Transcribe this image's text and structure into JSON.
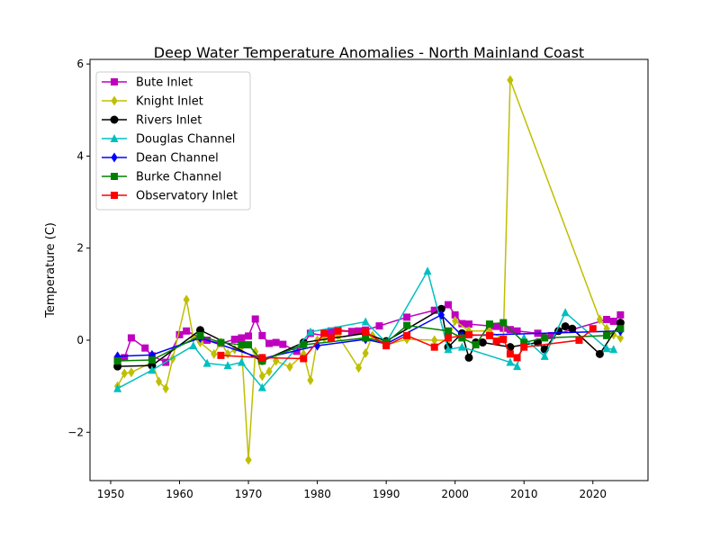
{
  "chart_data": {
    "type": "line",
    "title": "Deep Water Temperature Anomalies - North Mainland Coast",
    "xlabel": "",
    "ylabel": "Temperature (C)",
    "xlim": [
      1947,
      2028
    ],
    "ylim": [
      -3.05,
      6.1
    ],
    "xticks": [
      1950,
      1960,
      1970,
      1980,
      1990,
      2000,
      2010,
      2020
    ],
    "yticks": [
      -2,
      0,
      2,
      4,
      6
    ],
    "yticklabels": [
      "−2",
      "0",
      "2",
      "4",
      "6"
    ],
    "grid": false,
    "legend_position": "top-left",
    "series": [
      {
        "name": "Bute Inlet",
        "color": "#bf00bf",
        "marker": "square",
        "x": [
          1951,
          1952,
          1953,
          1955,
          1956,
          1958,
          1960,
          1961,
          1963,
          1964,
          1966,
          1968,
          1969,
          1970,
          1971,
          1972,
          1973,
          1974,
          1975,
          1977,
          1978,
          1979,
          1981,
          1982,
          1983,
          1985,
          1986,
          1987,
          1989,
          1993,
          1997,
          1999,
          2000,
          2001,
          2002,
          2005,
          2006,
          2007,
          2008,
          2009,
          2012,
          2014,
          2022,
          2023,
          2024
        ],
        "y": [
          -0.42,
          -0.38,
          0.05,
          -0.17,
          -0.34,
          -0.48,
          0.12,
          0.2,
          0.05,
          0.0,
          -0.07,
          0.02,
          0.05,
          0.09,
          0.46,
          0.1,
          -0.07,
          -0.05,
          -0.09,
          -0.24,
          -0.09,
          0.15,
          0.1,
          0.2,
          0.22,
          0.19,
          0.2,
          0.22,
          0.31,
          0.5,
          0.65,
          0.77,
          0.55,
          0.36,
          0.35,
          0.31,
          0.3,
          0.26,
          0.23,
          0.2,
          0.15,
          0.1,
          0.45,
          0.41,
          0.55
        ]
      },
      {
        "name": "Knight Inlet",
        "color": "#bfbf00",
        "marker": "diamond",
        "x": [
          1951,
          1952,
          1953,
          1956,
          1957,
          1958,
          1959,
          1961,
          1962,
          1963,
          1965,
          1966,
          1967,
          1968,
          1969,
          1970,
          1971,
          1972,
          1973,
          1974,
          1976,
          1978,
          1979,
          1980,
          1981,
          1983,
          1986,
          1987,
          1988,
          1990,
          1993,
          1997,
          1999,
          2000,
          2002,
          2005,
          2007,
          2008,
          2021,
          2022,
          2023,
          2024
        ],
        "y": [
          -1.0,
          -0.72,
          -0.7,
          -0.48,
          -0.9,
          -1.05,
          -0.4,
          0.88,
          0.05,
          -0.05,
          -0.3,
          -0.05,
          -0.3,
          -0.2,
          -0.15,
          -2.6,
          -0.25,
          -0.78,
          -0.68,
          -0.45,
          -0.58,
          -0.3,
          -0.87,
          0.0,
          0.05,
          0.1,
          -0.6,
          -0.28,
          0.1,
          -0.1,
          0.02,
          0.0,
          0.0,
          0.42,
          0.2,
          0.2,
          0.02,
          5.65,
          0.45,
          0.25,
          0.12,
          0.05
        ]
      },
      {
        "name": "Rivers Inlet",
        "color": "#000000",
        "marker": "circle",
        "x": [
          1951,
          1956,
          1963,
          1972,
          1978,
          1987,
          1990,
          1998,
          1999,
          2001,
          2002,
          2003,
          2004,
          2008,
          2012,
          2013,
          2015,
          2016,
          2017,
          2021,
          2024
        ],
        "y": [
          -0.57,
          -0.55,
          0.22,
          -0.45,
          -0.05,
          0.15,
          -0.02,
          0.68,
          -0.15,
          0.15,
          -0.38,
          -0.05,
          -0.05,
          -0.15,
          -0.05,
          -0.2,
          0.2,
          0.3,
          0.25,
          -0.3,
          0.38
        ]
      },
      {
        "name": "Douglas Channel",
        "color": "#00bfbf",
        "marker": "triangle",
        "x": [
          1951,
          1956,
          1962,
          1964,
          1967,
          1969,
          1972,
          1979,
          1987,
          1990,
          1996,
          1999,
          2001,
          2008,
          2009,
          2010,
          2013,
          2016,
          2022,
          2023
        ],
        "y": [
          -1.05,
          -0.65,
          -0.12,
          -0.5,
          -0.55,
          -0.48,
          -1.03,
          0.18,
          0.4,
          -0.05,
          1.5,
          -0.2,
          -0.15,
          -0.48,
          -0.57,
          0.05,
          -0.35,
          0.6,
          -0.18,
          -0.2
        ]
      },
      {
        "name": "Dean Channel",
        "color": "#0000ff",
        "marker": "diamond",
        "x": [
          1951,
          1956,
          1963,
          1972,
          1980,
          1987,
          1990,
          1998,
          2001,
          2024
        ],
        "y": [
          -0.35,
          -0.32,
          0.05,
          -0.4,
          -0.12,
          0.02,
          -0.08,
          0.55,
          0.1,
          0.2
        ]
      },
      {
        "name": "Burke Channel",
        "color": "#008000",
        "marker": "square",
        "x": [
          1951,
          1956,
          1963,
          1966,
          1969,
          1970,
          1972,
          1978,
          1987,
          1990,
          1993,
          1999,
          2001,
          2003,
          2005,
          2007,
          2010,
          2013,
          2022,
          2024
        ],
        "y": [
          -0.45,
          -0.43,
          0.1,
          -0.05,
          -0.1,
          -0.1,
          -0.45,
          -0.1,
          0.05,
          -0.05,
          0.32,
          0.2,
          0.05,
          -0.1,
          0.35,
          0.38,
          -0.05,
          0.05,
          0.1,
          0.25
        ]
      },
      {
        "name": "Observatory Inlet",
        "color": "#ff0000",
        "marker": "square",
        "x": [
          1966,
          1972,
          1978,
          1981,
          1982,
          1983,
          1987,
          1990,
          1993,
          1997,
          1999,
          2002,
          2005,
          2006,
          2007,
          2008,
          2009,
          2010,
          2018,
          2020
        ],
        "y": [
          -0.33,
          -0.38,
          -0.4,
          0.15,
          0.05,
          0.2,
          0.18,
          -0.12,
          0.1,
          -0.15,
          0.05,
          0.12,
          0.1,
          -0.02,
          0.02,
          -0.3,
          -0.38,
          -0.15,
          0.0,
          0.25
        ]
      }
    ]
  }
}
